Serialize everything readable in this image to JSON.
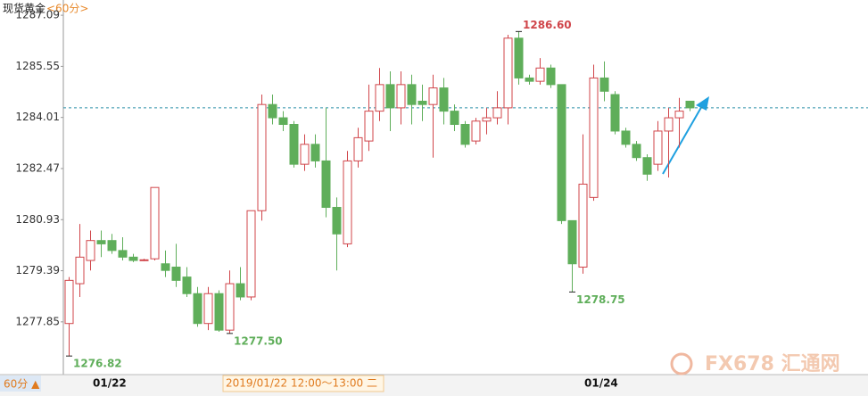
{
  "chart_data": {
    "type": "candlestick",
    "title": "现货黄金",
    "subtitle": "<60分>",
    "ylim": [
      1276.26,
      1287.55
    ],
    "yticks": [
      1287.09,
      1285.55,
      1284.01,
      1282.47,
      1280.93,
      1279.39,
      1277.85
    ],
    "up_color": "#d0454a",
    "down_color": "#5fae5a",
    "reference_line": 1284.3,
    "open": [
      1277.8,
      1279.0,
      1279.7,
      1280.3,
      1280.3,
      1280.0,
      1279.8,
      1279.7,
      1279.75,
      1279.6,
      1279.5,
      1279.2,
      1278.7,
      1277.8,
      1278.7,
      1277.6,
      1279.0,
      1278.6,
      1281.2,
      1284.4,
      1284.0,
      1283.8,
      1282.6,
      1283.2,
      1282.7,
      1281.3,
      1280.2,
      1282.7,
      1283.3,
      1284.2,
      1285.0,
      1284.3,
      1285.0,
      1284.5,
      1284.4,
      1284.9,
      1284.2,
      1283.8,
      1283.3,
      1283.9,
      1284.0,
      1284.3,
      1286.4,
      1285.2,
      1285.1,
      1285.5,
      1285.0,
      1280.9,
      1279.5,
      1281.6,
      1285.2,
      1284.7,
      1283.6,
      1283.2,
      1282.8,
      1282.6,
      1283.6,
      1284.0,
      1284.5
    ],
    "high": [
      1279.2,
      1280.8,
      1280.6,
      1280.6,
      1280.5,
      1280.4,
      1279.9,
      1279.75,
      1281.9,
      1280.0,
      1280.2,
      1279.5,
      1278.9,
      1278.9,
      1278.8,
      1279.4,
      1279.5,
      1281.2,
      1284.7,
      1284.7,
      1284.2,
      1283.9,
      1283.5,
      1283.5,
      1284.3,
      1281.6,
      1283.0,
      1283.7,
      1285.0,
      1285.5,
      1285.4,
      1285.4,
      1285.3,
      1285.0,
      1285.3,
      1285.2,
      1284.4,
      1283.9,
      1284.0,
      1284.3,
      1284.8,
      1286.5,
      1286.6,
      1285.3,
      1285.8,
      1285.6,
      1285.0,
      1280.9,
      1283.5,
      1285.6,
      1285.7,
      1284.8,
      1283.7,
      1283.3,
      1282.9,
      1283.9,
      1284.3,
      1284.6,
      1284.5
    ],
    "low": [
      1276.82,
      1278.6,
      1279.4,
      1279.8,
      1279.9,
      1279.7,
      1279.65,
      1279.68,
      1279.7,
      1279.2,
      1278.9,
      1278.6,
      1277.7,
      1277.6,
      1277.55,
      1277.5,
      1278.5,
      1278.5,
      1280.9,
      1283.8,
      1283.6,
      1282.5,
      1282.4,
      1282.5,
      1281.0,
      1279.4,
      1280.1,
      1282.5,
      1283.0,
      1283.9,
      1283.6,
      1283.8,
      1283.8,
      1283.9,
      1282.8,
      1283.8,
      1283.6,
      1283.1,
      1283.2,
      1283.5,
      1283.8,
      1283.8,
      1285.0,
      1285.0,
      1285.0,
      1284.9,
      1280.8,
      1278.75,
      1279.3,
      1281.5,
      1284.5,
      1283.5,
      1283.1,
      1282.7,
      1282.1,
      1282.4,
      1282.2,
      1283.1,
      1284.2
    ],
    "close": [
      1279.1,
      1279.8,
      1280.3,
      1280.2,
      1280.0,
      1279.8,
      1279.7,
      1279.72,
      1281.9,
      1279.4,
      1279.1,
      1278.7,
      1277.8,
      1278.7,
      1277.6,
      1279.0,
      1278.6,
      1281.2,
      1284.4,
      1284.0,
      1283.8,
      1282.6,
      1283.2,
      1282.7,
      1281.3,
      1280.5,
      1282.7,
      1283.4,
      1284.2,
      1285.0,
      1284.3,
      1285.0,
      1284.4,
      1284.4,
      1284.9,
      1284.2,
      1283.8,
      1283.2,
      1283.9,
      1284.0,
      1284.3,
      1286.4,
      1285.2,
      1285.1,
      1285.5,
      1285.0,
      1280.9,
      1279.6,
      1282.0,
      1285.2,
      1284.8,
      1283.6,
      1283.2,
      1282.8,
      1282.3,
      1283.6,
      1284.0,
      1284.2,
      1284.3
    ],
    "annotations": [
      {
        "value": 1286.6,
        "label": "1286.60",
        "color": "#d0454a"
      },
      {
        "value": 1278.75,
        "label": "1278.75",
        "color": "#5fae5a"
      },
      {
        "value": 1277.5,
        "label": "1277.50",
        "color": "#5fae5a"
      },
      {
        "value": 1276.82,
        "label": "1276.82",
        "color": "#5fae5a"
      }
    ]
  },
  "bottom_bar": {
    "period": "60分 ▲",
    "dates": [
      "01/22",
      "01/24"
    ],
    "hover": "2019/01/22 12:00～13:00 二"
  },
  "watermark": "FX678 汇通网"
}
